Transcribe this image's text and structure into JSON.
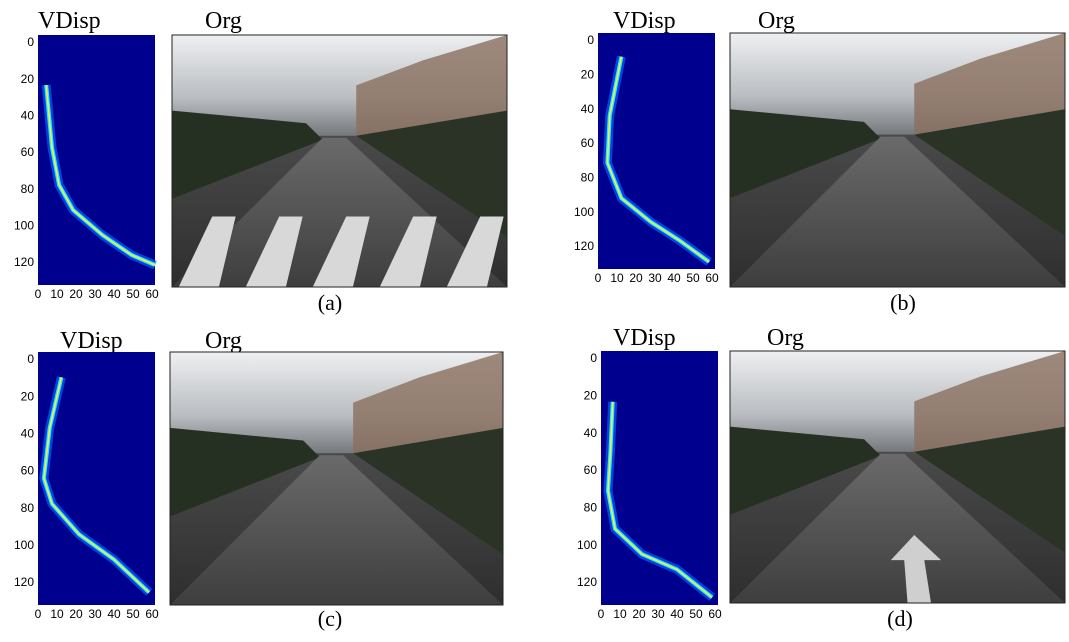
{
  "panels": [
    {
      "vdisp_title": "VDisp",
      "org_title": "Org",
      "caption": "(a)",
      "xticks": [
        0,
        10,
        20,
        30,
        40,
        50,
        60
      ],
      "yticks": [
        0,
        20,
        40,
        60,
        80,
        100,
        120
      ]
    },
    {
      "vdisp_title": "VDisp",
      "org_title": "Org",
      "caption": "(b)",
      "xticks": [
        0,
        10,
        20,
        30,
        40,
        50,
        60
      ],
      "yticks": [
        0,
        20,
        40,
        60,
        80,
        100,
        120
      ]
    },
    {
      "vdisp_title": "VDisp",
      "org_title": "Org",
      "caption": "(c)",
      "xticks": [
        0,
        10,
        20,
        30,
        40,
        50,
        60
      ],
      "yticks": [
        0,
        20,
        40,
        60,
        80,
        100,
        120
      ]
    },
    {
      "vdisp_title": "VDisp",
      "org_title": "Org",
      "caption": "(d)",
      "xticks": [
        0,
        10,
        20,
        30,
        40,
        50,
        60
      ],
      "yticks": [
        0,
        20,
        40,
        60,
        80,
        100,
        120
      ]
    }
  ]
}
